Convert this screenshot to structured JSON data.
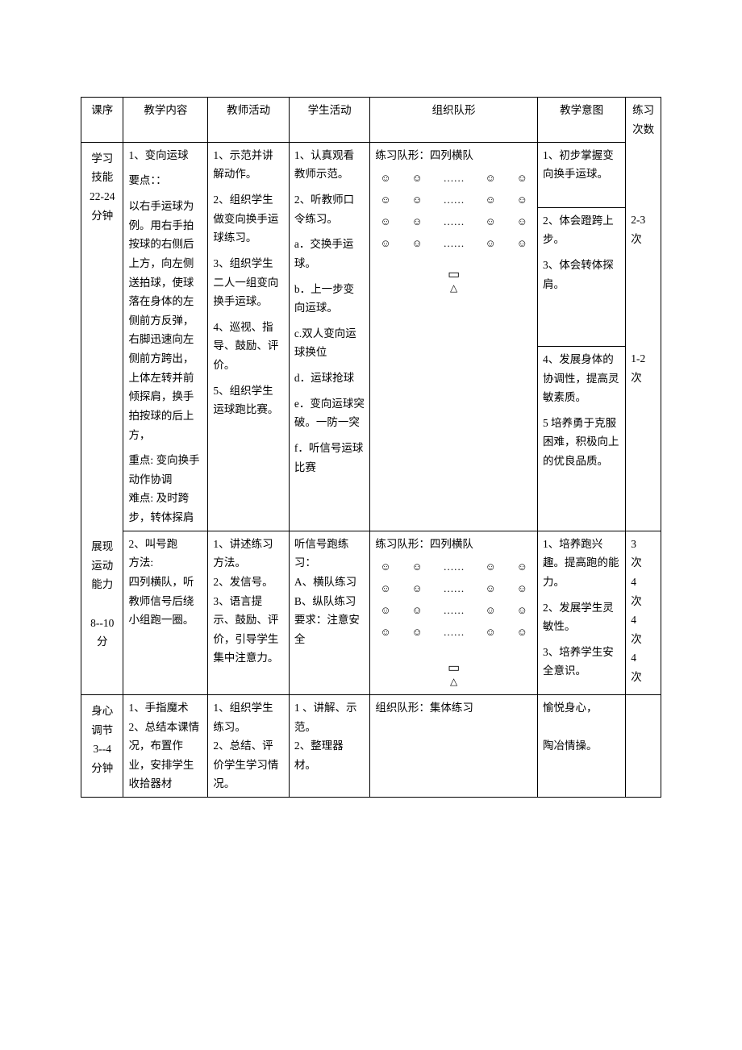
{
  "headers": {
    "sequence": "课序",
    "content": "教学内容",
    "teacher": "教师活动",
    "student": "学生活动",
    "formation": "组织队形",
    "intent": "教学意图",
    "count": "练习次数"
  },
  "formation_label": "练习队形：四列横队",
  "formation_label_group": "组织队形：集体练习",
  "smile": "☺",
  "dots": "……",
  "teacher_symbol_top": "▭",
  "teacher_symbol_bot": "△",
  "rows": {
    "r1": {
      "seq": "学习技能\n22-24\n分钟",
      "content_head": "1、变向运球",
      "content_points_label": "要点：：",
      "content_points": "以右手运球为例。用右手拍按球的右侧后上方，向左侧送拍球，使球落在身体的左侧前方反弹，右脚迅速向左侧前方跨出，上体左转并前倾探肩，换手拍按球的后上方，",
      "content_key": "重点: 变向换手动作协调\n难点: 及时跨步，转体探肩",
      "teacher": [
        "1、示范并讲解动作。",
        "2、组织学生做变向换手运球练习。",
        "3、组织学生二人一组变向换手运球。",
        "4、巡视、指导、鼓励、评价。",
        "5、组织学生运球跑比赛。"
      ],
      "student": [
        "1、认真观看教师示范。",
        "2、听教师口令练习。",
        "a．交换手运球。",
        "b．上一步变向运球。",
        "c.双人变向运球换位",
        "d．运球抢球",
        "e．变向运球突破。一防一突",
        "f．听信号运球比赛"
      ],
      "intent": [
        "1、初步掌握变向换手运球。",
        "2、体会蹬跨上步。",
        "3、体会转体探肩。",
        "4、发展身体的协调性，提高灵敏素质。",
        "5 培养勇于克服困难，积极向上的优良品质。"
      ],
      "counts": [
        "2-3\n次",
        "1-2\n次"
      ]
    },
    "r2": {
      "seq": "展现运动能力\n\n8--10\n分",
      "content": "2、叫号跑\n方法:\n四列横队，听教师信号后绕小组跑一圈。",
      "teacher": [
        "1、讲述练习方法。",
        "2、发信号。",
        "3、语言提示、鼓励、评价，引导学生集中注意力。"
      ],
      "student": "听信号跑练习：\nA、横队练习\nB、纵队练习\n要求：注意安全",
      "intent": [
        "1、培养跑兴趣。提高跑的能力。",
        "2、发展学生灵敏性。",
        "3、培养学生安全意识。"
      ],
      "counts": [
        "3\n次",
        "4\n次",
        "4\n次",
        "4\n次"
      ]
    },
    "r3": {
      "seq": "身心调节\n3--4\n分钟",
      "content": "1、手指魔术\n2、总结本课情况，布置作业，安排学生收拾器材",
      "teacher": [
        "1、组织学生练习。",
        "2、总结、评价学生学习情况。"
      ],
      "student": "1 、讲解、示范。\n2、整理器材。",
      "intent": "愉悦身心，\n\n陶冶情操。"
    }
  }
}
